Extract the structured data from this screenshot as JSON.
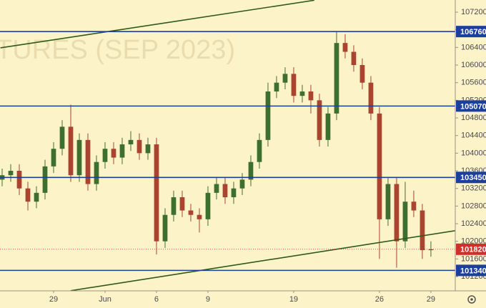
{
  "chart_data": {
    "type": "candlestick",
    "watermark": "TURES (SEP 2023)",
    "x": [
      -3,
      -2.5,
      -2,
      -1.5,
      -1,
      -0.5,
      0,
      0.5,
      1,
      1.5,
      2,
      2.5,
      3,
      3.5,
      4,
      4.5,
      5,
      5.5,
      6,
      6.5,
      7,
      7.5,
      8,
      8.5,
      9,
      9.5,
      10,
      10.5,
      11,
      11.5,
      12,
      12.5,
      13,
      13.5,
      14,
      14.5,
      15,
      15.5,
      16,
      16.5,
      17,
      17.5,
      18,
      18.5,
      19,
      19.5,
      20,
      20.5,
      21,
      21.5,
      22
    ],
    "open": [
      103400,
      103500,
      103600,
      103200,
      102900,
      103100,
      103700,
      104100,
      104600,
      103500,
      104300,
      103300,
      103800,
      104100,
      103900,
      104200,
      104300,
      104000,
      104200,
      102000,
      102600,
      103000,
      102700,
      102600,
      102500,
      103100,
      103300,
      103000,
      103200,
      103400,
      103800,
      104300,
      105400,
      105600,
      105800,
      105300,
      105400,
      105200,
      104300,
      104900,
      106500,
      106300,
      106000,
      105600,
      104900,
      102500,
      103300,
      102000,
      102900,
      102700,
      101800
    ],
    "high": [
      103650,
      103750,
      103750,
      103350,
      103250,
      103850,
      104250,
      104750,
      105100,
      104450,
      104450,
      103950,
      104250,
      104250,
      104350,
      104500,
      104450,
      104350,
      104350,
      102750,
      103150,
      103150,
      102850,
      102750,
      103250,
      103450,
      103450,
      103350,
      103550,
      103950,
      104450,
      105600,
      105750,
      105950,
      105950,
      105550,
      105550,
      105350,
      105050,
      106760,
      106700,
      106450,
      106150,
      105750,
      105050,
      103450,
      103450,
      103350,
      103150,
      102850,
      102000
    ],
    "low": [
      103250,
      103350,
      103050,
      102700,
      102750,
      102950,
      103550,
      103950,
      103350,
      103350,
      103150,
      103150,
      103650,
      103750,
      103750,
      104050,
      103850,
      103850,
      101700,
      101850,
      102450,
      102550,
      102450,
      102200,
      102350,
      102950,
      102850,
      102850,
      103050,
      103250,
      103650,
      104150,
      105250,
      105450,
      105150,
      105150,
      104900,
      104150,
      104150,
      104750,
      106150,
      105850,
      105450,
      104750,
      101600,
      102350,
      101400,
      101850,
      102550,
      101600,
      101650
    ],
    "close": [
      103500,
      103600,
      103200,
      102900,
      103100,
      103700,
      104100,
      104600,
      103500,
      104300,
      103300,
      103800,
      104100,
      103900,
      104200,
      104300,
      104000,
      104200,
      102000,
      102600,
      103000,
      102700,
      102600,
      102500,
      103100,
      103300,
      103000,
      103200,
      103400,
      103800,
      104300,
      105400,
      105600,
      105800,
      105300,
      105400,
      105200,
      104300,
      104900,
      106500,
      106300,
      106000,
      105600,
      104900,
      102500,
      103300,
      102000,
      102900,
      102700,
      101800,
      101820
    ],
    "up_color": "#3f6f2e",
    "down_color": "#a8442f",
    "xlim": [
      -3.125,
      23.42
    ],
    "ylim": [
      100876,
      107476
    ],
    "xticks": [
      {
        "value": 0,
        "label": "29"
      },
      {
        "value": 3,
        "label": "Jun"
      },
      6,
      9,
      {
        "value": 14,
        "label": "19"
      },
      {
        "value": 19,
        "label": "26"
      },
      {
        "value": 22,
        "label": "29"
      }
    ],
    "yticks": [
      101200,
      101600,
      102000,
      102400,
      102800,
      103200,
      103600,
      104000,
      104400,
      104800,
      105200,
      105600,
      106000,
      106400,
      106800,
      107200
    ],
    "levels": [
      106760,
      105070,
      103450,
      101340
    ],
    "level_color": "#1c3f9e",
    "last_price": 101820,
    "last_color": "#d0302c",
    "trendlines": [
      {
        "x": [
          -3.1,
          15.2
        ],
        "y": [
          106390,
          107470
        ]
      },
      {
        "x": [
          1,
          23.4
        ],
        "y": [
          100880,
          102240
        ]
      }
    ],
    "trend_color": "#2f5a17"
  }
}
